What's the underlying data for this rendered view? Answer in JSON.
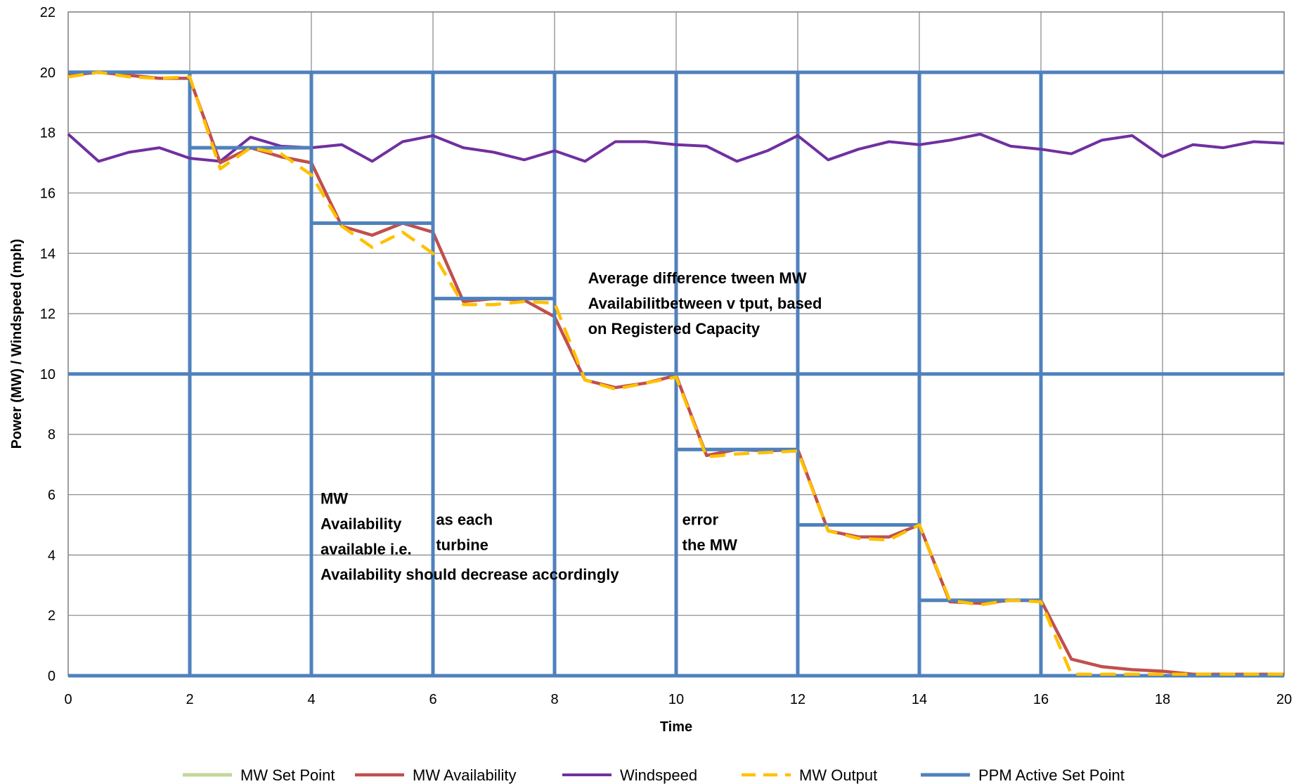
{
  "chart_data": {
    "type": "line",
    "title": "",
    "xlabel": "Time",
    "ylabel": "Power (MW) / Windspeed (mph)",
    "xlim": [
      0,
      20
    ],
    "ylim": [
      0,
      22
    ],
    "x_ticks": [
      0,
      2,
      4,
      6,
      8,
      10,
      12,
      14,
      16,
      18,
      20
    ],
    "y_ticks": [
      0,
      2,
      4,
      6,
      8,
      10,
      12,
      14,
      16,
      18,
      20,
      22
    ],
    "grid": true,
    "legend_position": "bottom",
    "series": [
      {
        "name": "MW Set Point",
        "color": "#c3d69b",
        "style": "solid",
        "x": [
          0,
          2,
          2,
          4,
          4,
          6,
          6,
          8,
          8,
          10,
          10,
          12,
          12,
          14,
          14,
          16,
          16,
          20
        ],
        "y": [
          20,
          20,
          17.5,
          17.5,
          15,
          15,
          12.5,
          12.5,
          10,
          10,
          7.5,
          7.5,
          5,
          5,
          2.5,
          2.5,
          0,
          0
        ]
      },
      {
        "name": "MW Availability",
        "color": "#c0504d",
        "style": "solid",
        "x": [
          0,
          0.5,
          1,
          1.5,
          2,
          2.5,
          3,
          3.5,
          4,
          4.5,
          5,
          5.5,
          6,
          6.5,
          7,
          7.5,
          8,
          8.5,
          9,
          9.5,
          10,
          10.5,
          11,
          11.5,
          12,
          12.5,
          13,
          13.5,
          14,
          14.5,
          15,
          15.5,
          16,
          16.5,
          17,
          17.5,
          18,
          18.5,
          19,
          19.5,
          20
        ],
        "y": [
          19.9,
          20,
          19.9,
          19.8,
          19.8,
          17,
          17.5,
          17.2,
          17,
          14.9,
          14.6,
          15,
          14.7,
          12.4,
          12.5,
          12.45,
          11.9,
          9.8,
          9.55,
          9.7,
          9.95,
          7.3,
          7.5,
          7.45,
          7.5,
          4.8,
          4.6,
          4.6,
          5,
          2.45,
          2.4,
          2.5,
          2.5,
          0.55,
          0.3,
          0.2,
          0.15,
          0.05,
          0.05,
          0.05,
          0.05
        ]
      },
      {
        "name": "Windspeed",
        "color": "#7030a0",
        "style": "solid",
        "x": [
          0,
          0.5,
          1,
          1.5,
          2,
          2.5,
          3,
          3.5,
          4,
          4.5,
          5,
          5.5,
          6,
          6.5,
          7,
          7.5,
          8,
          8.5,
          9,
          9.5,
          10,
          10.5,
          11,
          11.5,
          12,
          12.5,
          13,
          13.5,
          14,
          14.5,
          15,
          15.5,
          16,
          16.5,
          17,
          17.5,
          18,
          18.5,
          19,
          19.5,
          20
        ],
        "y": [
          17.95,
          17.05,
          17.35,
          17.5,
          17.15,
          17.05,
          17.85,
          17.55,
          17.5,
          17.6,
          17.05,
          17.7,
          17.9,
          17.5,
          17.35,
          17.1,
          17.4,
          17.05,
          17.7,
          17.7,
          17.6,
          17.55,
          17.05,
          17.4,
          17.9,
          17.1,
          17.45,
          17.7,
          17.6,
          17.75,
          17.95,
          17.55,
          17.45,
          17.3,
          17.75,
          17.9,
          17.2,
          17.6,
          17.5,
          17.7,
          17.65
        ]
      },
      {
        "name": "MW Output",
        "color": "#ffc000",
        "style": "dashed",
        "x": [
          0,
          0.5,
          1,
          1.5,
          2,
          2.5,
          3,
          3.5,
          4,
          4.5,
          5,
          5.5,
          6,
          6.5,
          7,
          7.5,
          8,
          8.5,
          9,
          9.5,
          10,
          10.5,
          11,
          11.5,
          12,
          12.5,
          13,
          13.5,
          14,
          14.5,
          15,
          15.5,
          16,
          16.5,
          17,
          17.5,
          18,
          18.5,
          19,
          19.5,
          20
        ],
        "y": [
          19.85,
          20,
          19.85,
          19.8,
          19.85,
          16.8,
          17.5,
          17.3,
          16.6,
          14.9,
          14.2,
          14.7,
          14,
          12.3,
          12.3,
          12.4,
          12.35,
          9.8,
          9.5,
          9.7,
          9.9,
          7.25,
          7.35,
          7.4,
          7.45,
          4.8,
          4.55,
          4.5,
          5,
          2.5,
          2.35,
          2.5,
          2.45,
          0.05,
          0.05,
          0.05,
          0.05,
          0.05,
          0.05,
          0.05,
          0.05
        ]
      },
      {
        "name": "PPM Active Set Point",
        "color": "#4f81bd",
        "style": "solid",
        "x": [
          0,
          2,
          2,
          4,
          4,
          6,
          6,
          8,
          8,
          10,
          10,
          12,
          12,
          14,
          14,
          16,
          16,
          20
        ],
        "y": [
          20,
          20,
          17.5,
          17.5,
          15,
          15,
          12.5,
          12.5,
          10,
          10,
          7.5,
          7.5,
          5,
          5,
          2.5,
          2.5,
          0,
          0
        ]
      }
    ],
    "reference_lines": {
      "color": "#4f81bd",
      "horizontal": [
        0,
        10,
        20
      ],
      "vertical": [
        2,
        4,
        6,
        8,
        10,
        12,
        14,
        16
      ]
    },
    "annotations": [
      {
        "lines": [
          "Average   difference   tween MW",
          "Availabilitbetween v      tput, based",
          "on Registered Capacity"
        ],
        "x": 8.55,
        "y": 13.0
      },
      {
        "lines": [
          "MW",
          "Availability",
          "available i.e.",
          "",
          "Availability should decrease accordingly"
        ],
        "x": 4.15,
        "y": 5.7
      },
      {
        "lines": [
          "as each",
          "turbine"
        ],
        "x": 6.05,
        "y": 5.0
      },
      {
        "lines": [
          "error",
          "the MW"
        ],
        "x": 10.1,
        "y": 5.0
      }
    ]
  }
}
